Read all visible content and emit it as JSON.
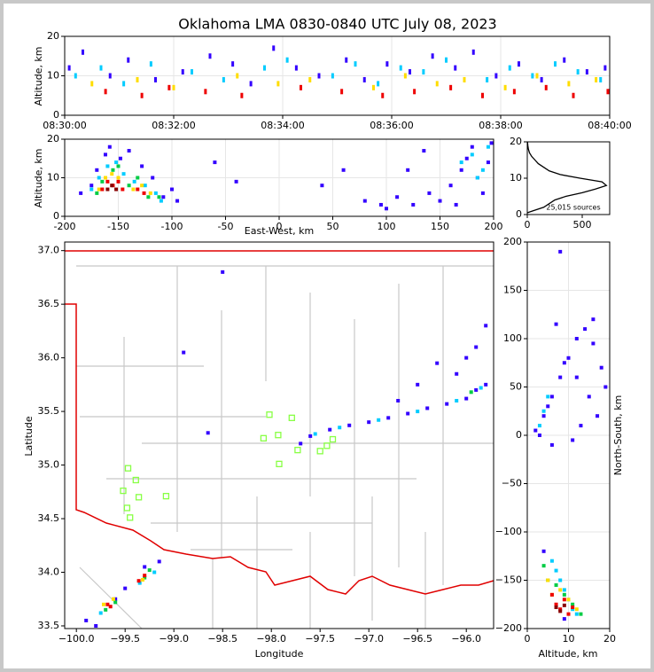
{
  "chart_data": [
    {
      "type": "scatter",
      "title": "Oklahoma LMA 0830-0840 UTC July 08, 2023",
      "y_label": "Altitude, km",
      "grid": true,
      "xlim": [
        "08:30:00",
        "08:40:00"
      ],
      "xticks": [
        "08:30:00",
        "08:32:00",
        "08:34:00",
        "08:36:00",
        "08:38:00",
        "08:40:00"
      ],
      "ylim": [
        0,
        20
      ],
      "yticks": [
        0,
        10,
        20
      ],
      "series": [
        {
          "color": "#3300ff",
          "x": [
            "08:30:05",
            "08:30:20",
            "08:30:50",
            "08:31:10",
            "08:31:40",
            "08:32:10",
            "08:32:40",
            "08:33:05",
            "08:33:25",
            "08:33:50",
            "08:34:15",
            "08:34:40",
            "08:35:10",
            "08:35:30",
            "08:35:55",
            "08:36:20",
            "08:36:45",
            "08:37:10",
            "08:37:30",
            "08:37:55",
            "08:38:20",
            "08:38:45",
            "08:39:10",
            "08:39:35",
            "08:39:55"
          ],
          "values": [
            12,
            16,
            10,
            14,
            9,
            11,
            15,
            13,
            8,
            17,
            12,
            10,
            14,
            9,
            13,
            11,
            15,
            12,
            16,
            10,
            13,
            9,
            14,
            11,
            12
          ]
        },
        {
          "color": "#00ccff",
          "x": [
            "08:30:12",
            "08:30:40",
            "08:31:05",
            "08:31:35",
            "08:32:20",
            "08:32:55",
            "08:33:40",
            "08:34:05",
            "08:34:55",
            "08:35:20",
            "08:35:45",
            "08:36:10",
            "08:36:35",
            "08:37:00",
            "08:37:45",
            "08:38:10",
            "08:38:35",
            "08:39:00",
            "08:39:25",
            "08:39:50"
          ],
          "values": [
            10,
            12,
            8,
            13,
            11,
            9,
            12,
            14,
            10,
            13,
            8,
            12,
            11,
            14,
            9,
            12,
            10,
            13,
            11,
            9
          ]
        },
        {
          "color": "#ffdd00",
          "x": [
            "08:30:30",
            "08:31:20",
            "08:32:00",
            "08:33:10",
            "08:33:55",
            "08:34:30",
            "08:35:40",
            "08:36:15",
            "08:36:50",
            "08:37:20",
            "08:38:05",
            "08:38:40",
            "08:39:15",
            "08:39:45"
          ],
          "values": [
            8,
            9,
            7,
            10,
            8,
            9,
            7,
            10,
            8,
            9,
            7,
            10,
            8,
            9
          ]
        },
        {
          "color": "#ee0000",
          "x": [
            "08:30:45",
            "08:31:25",
            "08:31:55",
            "08:32:35",
            "08:33:15",
            "08:34:20",
            "08:35:05",
            "08:35:50",
            "08:36:25",
            "08:37:05",
            "08:37:40",
            "08:38:15",
            "08:38:50",
            "08:39:20",
            "08:39:58"
          ],
          "values": [
            6,
            5,
            7,
            6,
            5,
            7,
            6,
            5,
            6,
            7,
            5,
            6,
            7,
            5,
            6
          ]
        }
      ]
    },
    {
      "type": "scatter",
      "x_label": "East-West, km",
      "y_label": "Altitude, km",
      "grid": true,
      "xlim": [
        -200,
        200
      ],
      "xticks": [
        -200,
        -150,
        -100,
        -50,
        0,
        50,
        100,
        150,
        200
      ],
      "ylim": [
        0,
        20
      ],
      "yticks": [
        0,
        10,
        20
      ],
      "series": [
        {
          "color": "#3300ff",
          "x": [
            -185,
            -175,
            -170,
            -162,
            -158,
            -148,
            -140,
            -128,
            -118,
            -108,
            -100,
            -95,
            -60,
            -40,
            40,
            60,
            80,
            95,
            110,
            125,
            140,
            150,
            160,
            170,
            175,
            180,
            185,
            190,
            195,
            198,
            120,
            135,
            100,
            165
          ],
          "values": [
            6,
            8,
            12,
            16,
            18,
            15,
            17,
            13,
            10,
            5,
            7,
            4,
            14,
            9,
            8,
            12,
            4,
            3,
            5,
            3,
            6,
            4,
            8,
            12,
            15,
            18,
            10,
            6,
            14,
            19,
            12,
            17,
            2,
            3
          ]
        },
        {
          "color": "#00ccff",
          "x": [
            -175,
            -168,
            -160,
            -152,
            -145,
            -135,
            -125,
            -115,
            -110,
            170,
            180,
            185,
            190,
            195
          ],
          "values": [
            7,
            10,
            13,
            14,
            11,
            9,
            8,
            6,
            4,
            14,
            16,
            10,
            12,
            18
          ]
        },
        {
          "color": "#00cc44",
          "x": [
            -170,
            -165,
            -155,
            -150,
            -140,
            -132,
            -122,
            -112
          ],
          "values": [
            6,
            9,
            12,
            13,
            8,
            10,
            5,
            5
          ]
        },
        {
          "color": "#ffdd00",
          "x": [
            -168,
            -162,
            -156,
            -150,
            -136,
            -128,
            -120
          ],
          "values": [
            7,
            10,
            11,
            10,
            7,
            8,
            6
          ]
        },
        {
          "color": "#ee0000",
          "x": [
            -165,
            -160,
            -155,
            -150,
            -146,
            -132,
            -126
          ],
          "values": [
            7,
            9,
            8,
            9,
            7,
            7,
            6
          ]
        },
        {
          "color": "#880000",
          "x": [
            -160,
            -156,
            -152
          ],
          "values": [
            7,
            8,
            7
          ]
        }
      ]
    },
    {
      "type": "line",
      "annotation": "25,015 sources",
      "color": "#000000",
      "xlim": [
        0,
        750
      ],
      "xticks": [
        0,
        500
      ],
      "ylim": [
        0,
        20
      ],
      "yticks": [
        0,
        10,
        20
      ],
      "x": [
        0,
        50,
        150,
        200,
        250,
        350,
        500,
        620,
        720,
        680,
        480,
        300,
        200,
        150,
        100,
        70,
        40,
        20,
        10,
        5,
        2
      ],
      "values": [
        0.5,
        1,
        2,
        3,
        4,
        5,
        6,
        7,
        8,
        9,
        10,
        11,
        12,
        13,
        14,
        15,
        16,
        17,
        18,
        19,
        20
      ]
    },
    {
      "type": "scatter",
      "x_label": "Longitude",
      "y_label": "Latitude",
      "xlim": [
        -100.12,
        -95.72
      ],
      "xticks": [
        {
          "value": -100,
          "label": "−100.0"
        },
        {
          "value": -99.5,
          "label": "−99.5"
        },
        {
          "value": -99,
          "label": "−99.0"
        },
        {
          "value": -98.5,
          "label": "−98.5"
        },
        {
          "value": -98,
          "label": "−98.0"
        },
        {
          "value": -97.5,
          "label": "−97.5"
        },
        {
          "value": -97,
          "label": "−97.0"
        },
        {
          "value": -96.5,
          "label": "−96.5"
        },
        {
          "value": -96,
          "label": "−96.0"
        }
      ],
      "ylim": [
        33.475,
        37.08
      ],
      "yticks": [
        33.5,
        {
          "value": 34,
          "label": "34.0"
        },
        34.5,
        {
          "value": 35,
          "label": "35.0"
        },
        35.5,
        {
          "value": 36,
          "label": "36.0"
        },
        36.5,
        {
          "value": 37,
          "label": "37.0"
        }
      ],
      "series": [
        {
          "color": "#3300ff",
          "x": [
            -97.6,
            -97.4,
            -97.2,
            -97,
            -96.8,
            -96.6,
            -96.4,
            -96.2,
            -96,
            -95.9,
            -95.8,
            -96.1,
            -96.3,
            -96.5,
            -96.7,
            -95.9,
            -95.8,
            -96,
            -99.8,
            -99.6,
            -99.3,
            -99.9,
            -99.5,
            -99.15,
            -98.9,
            -98.65,
            -98.5,
            -97.7
          ],
          "values": [
            35.27,
            35.33,
            35.37,
            35.4,
            35.44,
            35.48,
            35.53,
            35.57,
            35.62,
            35.7,
            35.75,
            35.85,
            35.95,
            35.75,
            35.6,
            36.1,
            36.3,
            36.0,
            33.5,
            33.75,
            34.05,
            33.55,
            33.85,
            34.1,
            36.05,
            35.3,
            36.8,
            35.2
          ]
        },
        {
          "color": "#00ccff",
          "x": [
            -97.55,
            -97.3,
            -96.9,
            -96.5,
            -96.1,
            -95.85,
            -99.75,
            -99.35,
            -99.2
          ],
          "values": [
            35.29,
            35.35,
            35.42,
            35.5,
            35.6,
            35.72,
            33.62,
            33.9,
            34.0
          ]
        },
        {
          "color": "#00cc44",
          "x": [
            -99.7,
            -99.6,
            -99.3,
            -99.25,
            -95.95
          ],
          "values": [
            33.65,
            33.72,
            33.95,
            34.02,
            35.68
          ]
        },
        {
          "color": "#ffdd00",
          "x": [
            -99.72,
            -99.62,
            -99.32
          ],
          "values": [
            33.7,
            33.75,
            33.93
          ]
        },
        {
          "color": "#ee0000",
          "x": [
            -99.68,
            -99.65,
            -99.36,
            -99.3
          ],
          "values": [
            33.7,
            33.68,
            33.92,
            33.97
          ]
        },
        {
          "color": "#88ff44",
          "marker": "square",
          "x": [
            -98.02,
            -97.79,
            -97.93,
            -98.08,
            -97.73,
            -97.92,
            -97.5,
            -97.43,
            -97.37,
            -99.47,
            -99.39,
            -99.52,
            -99.36,
            -99.48,
            -99.45,
            -99.08
          ],
          "values": [
            35.47,
            35.44,
            35.28,
            35.25,
            35.14,
            35.01,
            35.13,
            35.18,
            35.24,
            34.97,
            34.86,
            34.76,
            34.7,
            34.6,
            34.51,
            34.71
          ]
        }
      ]
    },
    {
      "type": "scatter",
      "x_label": "Altitude, km",
      "y_label": "North-South, km",
      "grid": true,
      "xlim": [
        0,
        20
      ],
      "xticks": [
        0,
        10,
        20
      ],
      "ylim": [
        -200,
        200
      ],
      "yticks": [
        {
          "value": -200,
          "label": "−200"
        },
        {
          "value": -150,
          "label": "−150"
        },
        {
          "value": -100,
          "label": "−100"
        },
        {
          "value": -50,
          "label": "−50"
        },
        0,
        50,
        100,
        150,
        200
      ],
      "series": [
        {
          "color": "#3300ff",
          "x": [
            2,
            4,
            6,
            8,
            10,
            12,
            14,
            16,
            18,
            19,
            5,
            7,
            9,
            15,
            17,
            11,
            13,
            3,
            6,
            8,
            12,
            16,
            4,
            9
          ],
          "values": [
            5,
            20,
            40,
            60,
            80,
            100,
            110,
            95,
            70,
            50,
            30,
            115,
            75,
            40,
            20,
            -5,
            10,
            0,
            -10,
            190,
            60,
            120,
            -120,
            -190
          ]
        },
        {
          "color": "#00ccff",
          "x": [
            3,
            4,
            5,
            6,
            7,
            8,
            9,
            10,
            11,
            12
          ],
          "values": [
            10,
            25,
            40,
            -130,
            -140,
            -150,
            -160,
            -170,
            -180,
            -185
          ]
        },
        {
          "color": "#00cc44",
          "x": [
            4,
            5,
            7,
            9,
            11,
            13
          ],
          "values": [
            -135,
            -150,
            -155,
            -165,
            -175,
            -185
          ]
        },
        {
          "color": "#ffdd00",
          "x": [
            5,
            6,
            8,
            10,
            12
          ],
          "values": [
            -150,
            -165,
            -160,
            -170,
            -180
          ]
        },
        {
          "color": "#ee0000",
          "x": [
            6,
            7,
            8,
            9,
            10,
            11
          ],
          "values": [
            -165,
            -175,
            -180,
            -170,
            -185,
            -178
          ]
        },
        {
          "color": "#880000",
          "x": [
            7,
            8,
            9
          ],
          "values": [
            -178,
            -182,
            -176
          ]
        }
      ]
    }
  ]
}
